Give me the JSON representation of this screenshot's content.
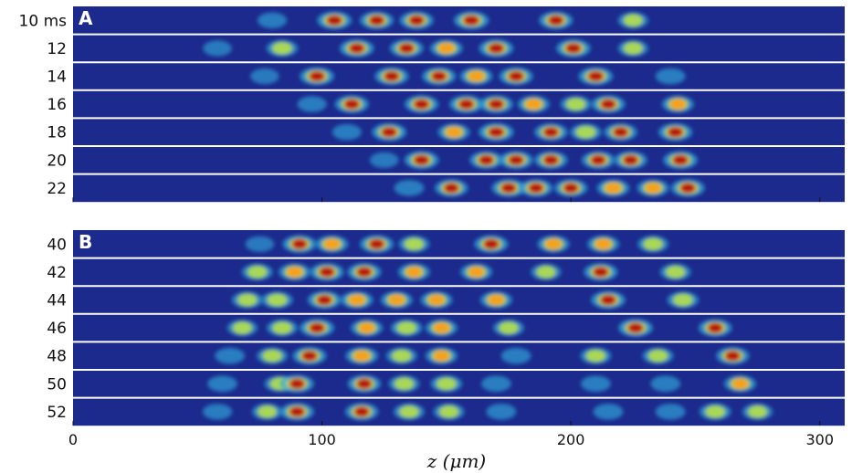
{
  "axis": {
    "label": "z (μm)",
    "range": [
      0,
      310
    ],
    "ticks": [
      0,
      100,
      200,
      300
    ]
  },
  "panels": [
    {
      "id": "A",
      "letter": "A",
      "rows": [
        {
          "label": "10 ms",
          "clusters": [
            [
              80,
              0.35
            ],
            [
              105,
              0.8
            ],
            [
              122,
              0.75
            ],
            [
              138,
              0.75
            ],
            [
              160,
              0.85
            ],
            [
              194,
              0.75
            ],
            [
              225,
              0.45
            ]
          ]
        },
        {
          "label": "12",
          "clusters": [
            [
              58,
              0.3
            ],
            [
              84,
              0.55
            ],
            [
              114,
              0.8
            ],
            [
              134,
              0.75
            ],
            [
              150,
              0.65
            ],
            [
              170,
              0.8
            ],
            [
              201,
              0.8
            ],
            [
              225,
              0.45
            ]
          ]
        },
        {
          "label": "14",
          "clusters": [
            [
              77,
              0.3
            ],
            [
              98,
              0.8
            ],
            [
              128,
              0.75
            ],
            [
              147,
              0.75
            ],
            [
              162,
              0.65
            ],
            [
              178,
              0.75
            ],
            [
              210,
              0.8
            ],
            [
              240,
              0.4
            ]
          ]
        },
        {
          "label": "16",
          "clusters": [
            [
              96,
              0.35
            ],
            [
              112,
              0.75
            ],
            [
              140,
              0.75
            ],
            [
              158,
              0.75
            ],
            [
              170,
              0.75
            ],
            [
              185,
              0.6
            ],
            [
              202,
              0.5
            ],
            [
              215,
              0.75
            ],
            [
              243,
              0.6
            ]
          ]
        },
        {
          "label": "18",
          "clusters": [
            [
              110,
              0.35
            ],
            [
              127,
              0.8
            ],
            [
              153,
              0.6
            ],
            [
              170,
              0.85
            ],
            [
              192,
              0.7
            ],
            [
              206,
              0.55
            ],
            [
              220,
              0.7
            ],
            [
              242,
              0.75
            ]
          ]
        },
        {
          "label": "20",
          "clusters": [
            [
              125,
              0.3
            ],
            [
              140,
              0.8
            ],
            [
              166,
              0.7
            ],
            [
              178,
              0.75
            ],
            [
              192,
              0.7
            ],
            [
              211,
              0.7
            ],
            [
              224,
              0.7
            ],
            [
              244,
              0.8
            ]
          ]
        },
        {
          "label": "22",
          "clusters": [
            [
              135,
              0.4
            ],
            [
              152,
              0.7
            ],
            [
              175,
              0.75
            ],
            [
              186,
              0.7
            ],
            [
              200,
              0.7
            ],
            [
              217,
              0.65
            ],
            [
              233,
              0.6
            ],
            [
              247,
              0.75
            ]
          ]
        }
      ]
    },
    {
      "id": "B",
      "letter": "B",
      "rows": [
        {
          "label": "40",
          "clusters": [
            [
              75,
              0.3
            ],
            [
              91,
              0.75
            ],
            [
              104,
              0.65
            ],
            [
              122,
              0.75
            ],
            [
              137,
              0.5
            ],
            [
              168,
              0.75
            ],
            [
              193,
              0.6
            ],
            [
              213,
              0.6
            ],
            [
              233,
              0.5
            ]
          ]
        },
        {
          "label": "42",
          "clusters": [
            [
              74,
              0.5
            ],
            [
              89,
              0.6
            ],
            [
              102,
              0.75
            ],
            [
              117,
              0.75
            ],
            [
              137,
              0.6
            ],
            [
              162,
              0.6
            ],
            [
              190,
              0.45
            ],
            [
              212,
              0.75
            ],
            [
              242,
              0.5
            ]
          ]
        },
        {
          "label": "44",
          "clusters": [
            [
              70,
              0.5
            ],
            [
              82,
              0.55
            ],
            [
              101,
              0.75
            ],
            [
              114,
              0.65
            ],
            [
              130,
              0.6
            ],
            [
              146,
              0.6
            ],
            [
              170,
              0.6
            ],
            [
              215,
              0.8
            ],
            [
              245,
              0.55
            ]
          ]
        },
        {
          "label": "46",
          "clusters": [
            [
              68,
              0.45
            ],
            [
              84,
              0.5
            ],
            [
              98,
              0.8
            ],
            [
              118,
              0.6
            ],
            [
              134,
              0.55
            ],
            [
              148,
              0.6
            ],
            [
              175,
              0.5
            ],
            [
              226,
              0.8
            ],
            [
              258,
              0.7
            ]
          ]
        },
        {
          "label": "48",
          "clusters": [
            [
              63,
              0.4
            ],
            [
              80,
              0.5
            ],
            [
              95,
              0.75
            ],
            [
              116,
              0.65
            ],
            [
              132,
              0.5
            ],
            [
              148,
              0.6
            ],
            [
              178,
              0.4
            ],
            [
              210,
              0.5
            ],
            [
              235,
              0.5
            ],
            [
              265,
              0.7
            ]
          ]
        },
        {
          "label": "50",
          "clusters": [
            [
              60,
              0.4
            ],
            [
              83,
              0.45
            ],
            [
              90,
              0.75
            ],
            [
              117,
              0.7
            ],
            [
              133,
              0.5
            ],
            [
              150,
              0.55
            ],
            [
              170,
              0.4
            ],
            [
              210,
              0.4
            ],
            [
              238,
              0.4
            ],
            [
              268,
              0.6
            ]
          ]
        },
        {
          "label": "52",
          "clusters": [
            [
              58,
              0.35
            ],
            [
              78,
              0.45
            ],
            [
              90,
              0.75
            ],
            [
              116,
              0.7
            ],
            [
              135,
              0.5
            ],
            [
              151,
              0.5
            ],
            [
              172,
              0.4
            ],
            [
              215,
              0.4
            ],
            [
              240,
              0.4
            ],
            [
              258,
              0.55
            ],
            [
              275,
              0.45
            ]
          ]
        }
      ]
    }
  ]
}
